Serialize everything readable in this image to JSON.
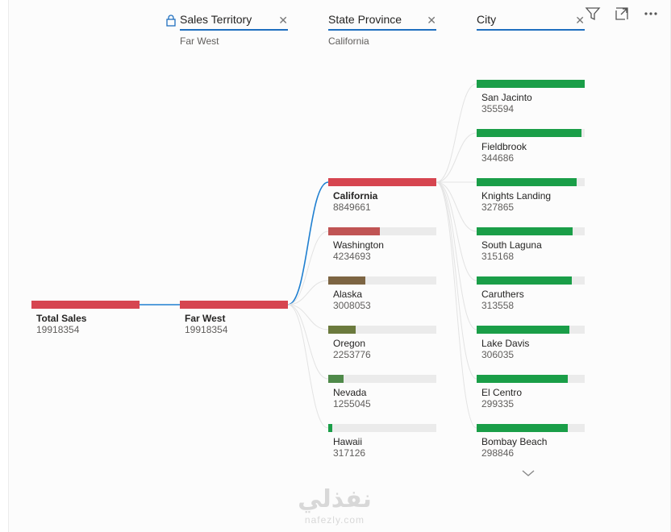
{
  "headers": [
    {
      "title": "Sales Territory",
      "filter": "Far West",
      "locked": true
    },
    {
      "title": "State Province",
      "filter": "California",
      "locked": false
    },
    {
      "title": "City",
      "filter": "",
      "locked": false
    }
  ],
  "toolbar_icons": [
    "filter-icon",
    "expand-icon",
    "more-options-icon"
  ],
  "levels": [
    [
      {
        "label": "Total Sales",
        "value": "19918354",
        "fraction": 1.0,
        "color": "#d64550",
        "selected": true
      }
    ],
    [
      {
        "label": "Far West",
        "value": "19918354",
        "fraction": 1.0,
        "color": "#d64550",
        "selected": true
      }
    ],
    [
      {
        "label": "California",
        "value": "8849661",
        "fraction": 1.0,
        "color": "#d64550",
        "selected": true
      },
      {
        "label": "Washington",
        "value": "4234693",
        "fraction": 0.4785,
        "color": "#c05454",
        "selected": false
      },
      {
        "label": "Alaska",
        "value": "3008053",
        "fraction": 0.3399,
        "color": "#7d6543",
        "selected": false
      },
      {
        "label": "Oregon",
        "value": "2253776",
        "fraction": 0.2547,
        "color": "#6b7a3d",
        "selected": false
      },
      {
        "label": "Nevada",
        "value": "1255045",
        "fraction": 0.1418,
        "color": "#4f8a4a",
        "selected": false
      },
      {
        "label": "Hawaii",
        "value": "317126",
        "fraction": 0.0358,
        "color": "#1a9e48",
        "selected": false
      }
    ],
    [
      {
        "label": "San Jacinto",
        "value": "355594",
        "fraction": 1.0,
        "color": "#1a9e48",
        "selected": false
      },
      {
        "label": "Fieldbrook",
        "value": "344686",
        "fraction": 0.9693,
        "color": "#1a9e48",
        "selected": false
      },
      {
        "label": "Knights Landing",
        "value": "327865",
        "fraction": 0.922,
        "color": "#1a9e48",
        "selected": false
      },
      {
        "label": "South Laguna",
        "value": "315168",
        "fraction": 0.8863,
        "color": "#1a9e48",
        "selected": false
      },
      {
        "label": "Caruthers",
        "value": "313558",
        "fraction": 0.8818,
        "color": "#1a9e48",
        "selected": false
      },
      {
        "label": "Lake Davis",
        "value": "306035",
        "fraction": 0.8606,
        "color": "#1a9e48",
        "selected": false
      },
      {
        "label": "El Centro",
        "value": "299335",
        "fraction": 0.8418,
        "color": "#1a9e48",
        "selected": false
      },
      {
        "label": "Bombay Beach",
        "value": "298846",
        "fraction": 0.8404,
        "color": "#1a9e48",
        "selected": false
      }
    ]
  ],
  "link_colors": {
    "active": "#1f7fd0",
    "inactive": "#e3e3e3"
  },
  "watermark": {
    "arabic": "نفذلي",
    "latin": "nafezly.com"
  }
}
